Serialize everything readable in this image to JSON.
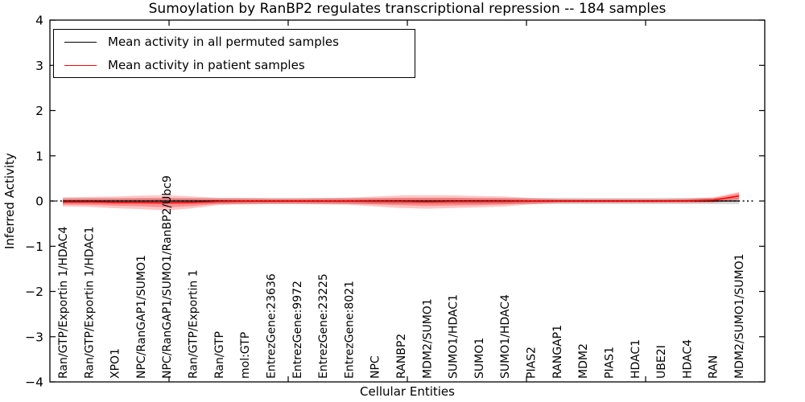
{
  "figure": {
    "title": "Sumoylation by RanBP2 regulates transcriptional repression -- 184 samples",
    "xlabel": "Cellular Entities",
    "ylabel": "Inferred Activity"
  },
  "legend": {
    "items": [
      {
        "label": "Mean activity in all permuted samples",
        "color": "#000000"
      },
      {
        "label": "Mean activity in patient samples",
        "color": "#ff0000"
      }
    ]
  },
  "axes": {
    "ytick_labels": [
      "4",
      "3",
      "2",
      "1",
      "0",
      "−1",
      "−2",
      "−3",
      "−4"
    ],
    "ytick_values": [
      4,
      3,
      2,
      1,
      0,
      -1,
      -2,
      -3,
      -4
    ]
  },
  "chart_data": {
    "type": "line",
    "title": "Sumoylation by RanBP2 regulates transcriptional repression -- 184 samples",
    "xlabel": "Cellular Entities",
    "ylabel": "Inferred Activity",
    "ylim": [
      -4,
      4
    ],
    "yticks": [
      -4,
      -3,
      -2,
      -1,
      0,
      1,
      2,
      3,
      4
    ],
    "grid": false,
    "legend_position": "upper left",
    "categories": [
      "Ran/GTP/Exportin 1/HDAC4",
      "Ran/GTP/Exportin 1/HDAC1",
      "XPO1",
      "NPC/RanGAP1/SUMO1",
      "NPC/RanGAP1/SUMO1/RanBP2/Ubc9",
      "Ran/GTP/Exportin 1",
      "Ran/GTP",
      "mol:GTP",
      "EntrezGene:23636",
      "EntrezGene:9972",
      "EntrezGene:23225",
      "EntrezGene:8021",
      "NPC",
      "RANBP2",
      "MDM2/SUMO1",
      "SUMO1/HDAC1",
      "SUMO1",
      "SUMO1/HDAC4",
      "PIAS2",
      "RANGAP1",
      "MDM2",
      "PIAS1",
      "HDAC1",
      "UBE2I",
      "HDAC4",
      "RAN",
      "MDM2/SUMO1/SUMO1"
    ],
    "series": [
      {
        "name": "Mean activity in all permuted samples",
        "color": "#000000",
        "values": [
          0,
          0,
          0,
          0,
          0,
          0,
          0,
          0,
          0,
          0,
          0,
          0,
          0,
          0,
          0,
          0,
          0,
          0,
          0,
          0,
          0,
          0,
          0,
          0,
          0,
          0,
          0
        ]
      },
      {
        "name": "Mean activity in patient samples",
        "color": "#ff0000",
        "values": [
          -0.02,
          -0.02,
          -0.03,
          -0.03,
          -0.04,
          -0.03,
          -0.01,
          -0.005,
          -0.005,
          -0.005,
          -0.005,
          -0.005,
          -0.01,
          -0.015,
          -0.02,
          -0.015,
          -0.015,
          -0.01,
          -0.005,
          0,
          0,
          0,
          0,
          0,
          0.005,
          0.02,
          0.11
        ]
      }
    ],
    "bands": [
      {
        "name": "permuted-samples-range",
        "center": "permuted",
        "color": "#aaaaaa",
        "opacity": 0.45,
        "half_widths": [
          0.07,
          0.07,
          0.07,
          0.07,
          0.07,
          0.07,
          0.07,
          0.07,
          0.07,
          0.07,
          0.07,
          0.07,
          0.07,
          0.07,
          0.07,
          0.07,
          0.07,
          0.07,
          0.07,
          0.07,
          0.07,
          0.07,
          0.07,
          0.07,
          0.07,
          0.07,
          0.07
        ]
      },
      {
        "name": "patient-samples-outer-band",
        "center": "patient",
        "color": "#ff0000",
        "opacity": 0.22,
        "half_widths": [
          0.1,
          0.11,
          0.13,
          0.15,
          0.17,
          0.13,
          0.08,
          0.07,
          0.065,
          0.065,
          0.07,
          0.08,
          0.11,
          0.14,
          0.15,
          0.14,
          0.125,
          0.11,
          0.07,
          0.05,
          0.045,
          0.045,
          0.045,
          0.045,
          0.05,
          0.06,
          0.09
        ]
      },
      {
        "name": "patient-samples-inner-band",
        "center": "patient",
        "color": "#ff0000",
        "opacity": 0.28,
        "half_widths": [
          0.06,
          0.065,
          0.075,
          0.085,
          0.1,
          0.08,
          0.05,
          0.045,
          0.04,
          0.04,
          0.045,
          0.05,
          0.065,
          0.08,
          0.09,
          0.085,
          0.075,
          0.065,
          0.045,
          0.03,
          0.028,
          0.028,
          0.028,
          0.028,
          0.03,
          0.04,
          0.06
        ]
      }
    ],
    "zero_line": 0
  }
}
